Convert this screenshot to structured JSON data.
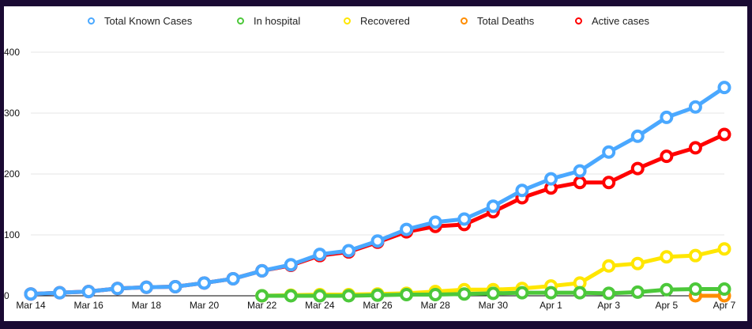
{
  "chart_data": {
    "type": "line",
    "title": "",
    "xlabel": "",
    "ylabel": "",
    "ylim": [
      0,
      400
    ],
    "yticks": [
      "0",
      "100",
      "200",
      "300",
      "400"
    ],
    "grid": true,
    "legend_position": "top",
    "x": [
      "Mar 14",
      "Mar 15",
      "Mar 16",
      "Mar 17",
      "Mar 18",
      "Mar 19",
      "Mar 20",
      "Mar 21",
      "Mar 22",
      "Mar 23",
      "Mar 24",
      "Mar 25",
      "Mar 26",
      "Mar 27",
      "Mar 28",
      "Mar 29",
      "Mar 30",
      "Mar 31",
      "Apr 1",
      "Apr 2",
      "Apr 3",
      "Apr 4",
      "Apr 5",
      "Apr 6",
      "Apr 7"
    ],
    "xtick_labels": [
      "Mar 14",
      "Mar 16",
      "Mar 18",
      "Mar 20",
      "Mar 22",
      "Mar 24",
      "Mar 26",
      "Mar 28",
      "Mar 30",
      "Apr 1",
      "Apr 3",
      "Apr 5",
      "Apr 7"
    ],
    "series": [
      {
        "name": "Active cases",
        "color": "#ff0000",
        "values": [
          3,
          5,
          7,
          12,
          14,
          15,
          21,
          28,
          41,
          50,
          66,
          72,
          88,
          105,
          114,
          117,
          138,
          161,
          177,
          186,
          186,
          209,
          229,
          243,
          265
        ]
      },
      {
        "name": "Total Known Cases",
        "color": "#4aa8ff",
        "values": [
          3,
          5,
          7,
          12,
          14,
          15,
          21,
          28,
          41,
          51,
          68,
          74,
          90,
          109,
          121,
          126,
          147,
          173,
          192,
          205,
          236,
          262,
          293,
          310,
          342
        ]
      },
      {
        "name": "Recovered",
        "color": "#ffe600",
        "values": [
          null,
          null,
          null,
          null,
          null,
          null,
          null,
          null,
          0,
          1,
          2,
          2,
          3,
          4,
          7,
          10,
          10,
          12,
          16,
          21,
          49,
          53,
          64,
          66,
          77
        ]
      },
      {
        "name": "Total Deaths",
        "color": "#ff8c00",
        "values": [
          null,
          null,
          null,
          null,
          null,
          null,
          null,
          null,
          null,
          null,
          null,
          null,
          null,
          null,
          null,
          null,
          null,
          null,
          null,
          null,
          null,
          null,
          null,
          0,
          0
        ]
      },
      {
        "name": "In hospital",
        "color": "#4cc83a",
        "values": [
          null,
          null,
          null,
          null,
          null,
          null,
          null,
          null,
          0,
          0,
          0,
          0,
          1,
          2,
          2,
          3,
          4,
          5,
          5,
          5,
          4,
          6,
          10,
          11,
          11
        ]
      }
    ],
    "legend": [
      {
        "name": "Total Known Cases",
        "color": "#4aa8ff"
      },
      {
        "name": "In hospital",
        "color": "#4cc83a"
      },
      {
        "name": "Recovered",
        "color": "#ffe600"
      },
      {
        "name": "Total Deaths",
        "color": "#ff8c00"
      },
      {
        "name": "Active cases",
        "color": "#ff0000"
      }
    ]
  }
}
